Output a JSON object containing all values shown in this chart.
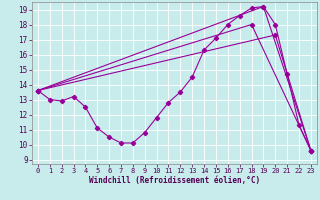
{
  "xlabel": "Windchill (Refroidissement éolien,°C)",
  "bg_color": "#c8ecec",
  "line_color": "#990099",
  "grid_color": "#ffffff",
  "xlim": [
    -0.5,
    23.5
  ],
  "ylim": [
    8.7,
    19.5
  ],
  "xticks": [
    0,
    1,
    2,
    3,
    4,
    5,
    6,
    7,
    8,
    9,
    10,
    11,
    12,
    13,
    14,
    15,
    16,
    17,
    18,
    19,
    20,
    21,
    22,
    23
  ],
  "yticks": [
    9,
    10,
    11,
    12,
    13,
    14,
    15,
    16,
    17,
    18,
    19
  ],
  "curve1_x": [
    0,
    1,
    2,
    3,
    4,
    5,
    6,
    7,
    8,
    9,
    10,
    11,
    12,
    13,
    14,
    15,
    16,
    17,
    18,
    19,
    20,
    21,
    22,
    23
  ],
  "curve1_y": [
    13.6,
    13.0,
    12.9,
    13.2,
    12.5,
    11.1,
    10.5,
    10.1,
    10.1,
    10.8,
    11.8,
    12.8,
    13.5,
    14.5,
    16.3,
    17.1,
    18.0,
    18.6,
    19.1,
    19.2,
    18.0,
    14.7,
    11.3,
    9.6
  ],
  "line1_x": [
    0,
    19,
    23
  ],
  "line1_y": [
    13.6,
    19.2,
    9.6
  ],
  "line2_x": [
    0,
    18,
    23
  ],
  "line2_y": [
    13.6,
    18.0,
    9.6
  ],
  "line3_x": [
    0,
    20,
    23
  ],
  "line3_y": [
    13.6,
    17.3,
    9.6
  ]
}
